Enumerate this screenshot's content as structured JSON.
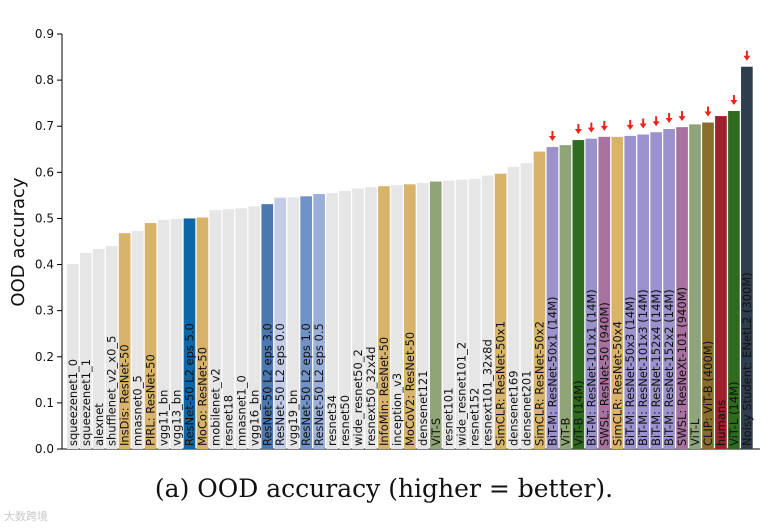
{
  "caption": "(a) OOD accuracy (higher = better).",
  "watermark": "大数跨境",
  "chart_data": {
    "type": "bar",
    "title": "",
    "xlabel": "",
    "ylabel": "OOD accuracy",
    "ylim": [
      0,
      0.9
    ],
    "yticks": [
      0.0,
      0.1,
      0.2,
      0.3,
      0.4,
      0.5,
      0.6,
      0.7,
      0.8,
      0.9
    ],
    "grid": false,
    "highlight_marker": "red downward arrow",
    "bars": [
      {
        "label": "squeezenet1_0",
        "value": 0.401,
        "color": "#e6e6e6",
        "arrow": false
      },
      {
        "label": "squeezenet1_1",
        "value": 0.425,
        "color": "#e6e6e6",
        "arrow": false
      },
      {
        "label": "alexnet",
        "value": 0.434,
        "color": "#e6e6e6",
        "arrow": false
      },
      {
        "label": "shufflenet_v2_x0_5",
        "value": 0.44,
        "color": "#e6e6e6",
        "arrow": false
      },
      {
        "label": "InsDis: ResNet-50",
        "value": 0.468,
        "color": "#d8b36a",
        "arrow": false
      },
      {
        "label": "mnasnet0_5",
        "value": 0.473,
        "color": "#e6e6e6",
        "arrow": false
      },
      {
        "label": "PIRL: ResNet-50",
        "value": 0.49,
        "color": "#d8b36a",
        "arrow": false
      },
      {
        "label": "vgg11_bn",
        "value": 0.497,
        "color": "#e6e6e6",
        "arrow": false
      },
      {
        "label": "vgg13_bn",
        "value": 0.499,
        "color": "#e6e6e6",
        "arrow": false
      },
      {
        "label": "ResNet-50 L2 eps 5.0",
        "value": 0.5,
        "color": "#0b67a8",
        "arrow": false
      },
      {
        "label": "MoCo: ResNet-50",
        "value": 0.502,
        "color": "#d8b36a",
        "arrow": false
      },
      {
        "label": "mobilenet_v2",
        "value": 0.518,
        "color": "#e6e6e6",
        "arrow": false
      },
      {
        "label": "resnet18",
        "value": 0.52,
        "color": "#e6e6e6",
        "arrow": false
      },
      {
        "label": "mnasnet1_0",
        "value": 0.522,
        "color": "#e6e6e6",
        "arrow": false
      },
      {
        "label": "vgg16_bn",
        "value": 0.526,
        "color": "#e6e6e6",
        "arrow": false
      },
      {
        "label": "ResNet-50 L2 eps 3.0",
        "value": 0.531,
        "color": "#4c78b0",
        "arrow": false
      },
      {
        "label": "ResNet-50 L2 eps 0.0",
        "value": 0.545,
        "color": "#c4cde8",
        "arrow": false
      },
      {
        "label": "vgg19_bn",
        "value": 0.546,
        "color": "#e6e6e6",
        "arrow": false
      },
      {
        "label": "ResNet-50 L2 eps 1.0",
        "value": 0.548,
        "color": "#7092c6",
        "arrow": false
      },
      {
        "label": "ResNet-50 L2 eps 0.5",
        "value": 0.553,
        "color": "#9bb0d8",
        "arrow": false
      },
      {
        "label": "resnet34",
        "value": 0.555,
        "color": "#e6e6e6",
        "arrow": false
      },
      {
        "label": "resnet50",
        "value": 0.56,
        "color": "#e6e6e6",
        "arrow": false
      },
      {
        "label": "wide_resnet50_2",
        "value": 0.565,
        "color": "#e6e6e6",
        "arrow": false
      },
      {
        "label": "resnext50_32x4d",
        "value": 0.568,
        "color": "#e6e6e6",
        "arrow": false
      },
      {
        "label": "InfoMin: ResNet-50",
        "value": 0.57,
        "color": "#d8b36a",
        "arrow": false
      },
      {
        "label": "inception_v3",
        "value": 0.572,
        "color": "#e6e6e6",
        "arrow": false
      },
      {
        "label": "MoCoV2: ResNet-50",
        "value": 0.574,
        "color": "#d8b36a",
        "arrow": false
      },
      {
        "label": "densenet121",
        "value": 0.577,
        "color": "#e6e6e6",
        "arrow": false
      },
      {
        "label": "ViT-S",
        "value": 0.58,
        "color": "#8fa477",
        "arrow": false
      },
      {
        "label": "resnet101",
        "value": 0.582,
        "color": "#e6e6e6",
        "arrow": false
      },
      {
        "label": "wide_resnet101_2",
        "value": 0.584,
        "color": "#e6e6e6",
        "arrow": false
      },
      {
        "label": "resnet152",
        "value": 0.586,
        "color": "#e6e6e6",
        "arrow": false
      },
      {
        "label": "resnext101_32x8d",
        "value": 0.593,
        "color": "#e6e6e6",
        "arrow": false
      },
      {
        "label": "SimCLR: ResNet-50x1",
        "value": 0.597,
        "color": "#d8b36a",
        "arrow": false
      },
      {
        "label": "densenet169",
        "value": 0.612,
        "color": "#e6e6e6",
        "arrow": false
      },
      {
        "label": "densenet201",
        "value": 0.62,
        "color": "#e6e6e6",
        "arrow": false
      },
      {
        "label": "SimCLR: ResNet-50x2",
        "value": 0.645,
        "color": "#d8b36a",
        "arrow": false
      },
      {
        "label": "BiT-M: ResNet-50x1 (14M)",
        "value": 0.655,
        "color": "#9b92cc",
        "arrow": true
      },
      {
        "label": "ViT-B",
        "value": 0.659,
        "color": "#8fa477",
        "arrow": false
      },
      {
        "label": "ViT-B (14M)",
        "value": 0.67,
        "color": "#2e6b1e",
        "arrow": true
      },
      {
        "label": "BiT-M: ResNet-101x1 (14M)",
        "value": 0.673,
        "color": "#9b92cc",
        "arrow": true
      },
      {
        "label": "SWSL: ResNet-50 (940M)",
        "value": 0.677,
        "color": "#a872a0",
        "arrow": true
      },
      {
        "label": "SimCLR: ResNet-50x4",
        "value": 0.677,
        "color": "#d8b36a",
        "arrow": false
      },
      {
        "label": "BiT-M: ResNet-50x3 (14M)",
        "value": 0.679,
        "color": "#9b92cc",
        "arrow": true
      },
      {
        "label": "BiT-M: ResNet-101x3 (14M)",
        "value": 0.682,
        "color": "#9b92cc",
        "arrow": true
      },
      {
        "label": "BiT-M: ResNet-152x4 (14M)",
        "value": 0.687,
        "color": "#9b92cc",
        "arrow": true
      },
      {
        "label": "BiT-M: ResNet-152x2 (14M)",
        "value": 0.694,
        "color": "#9b92cc",
        "arrow": true
      },
      {
        "label": "SWSL: ResNeXt-101 (940M)",
        "value": 0.698,
        "color": "#a872a0",
        "arrow": true
      },
      {
        "label": "ViT-L",
        "value": 0.704,
        "color": "#8fa477",
        "arrow": false
      },
      {
        "label": "CLIP: ViT-B (400M)",
        "value": 0.708,
        "color": "#8a6d2c",
        "arrow": true
      },
      {
        "label": "humans",
        "value": 0.722,
        "color": "#9e1f2e",
        "arrow": false
      },
      {
        "label": "ViT-L (14M)",
        "value": 0.733,
        "color": "#2e6b1e",
        "arrow": true
      },
      {
        "label": "Noisy Student: ENetL2 (300M)",
        "value": 0.829,
        "color": "#2f3e4e",
        "arrow": true
      }
    ]
  }
}
